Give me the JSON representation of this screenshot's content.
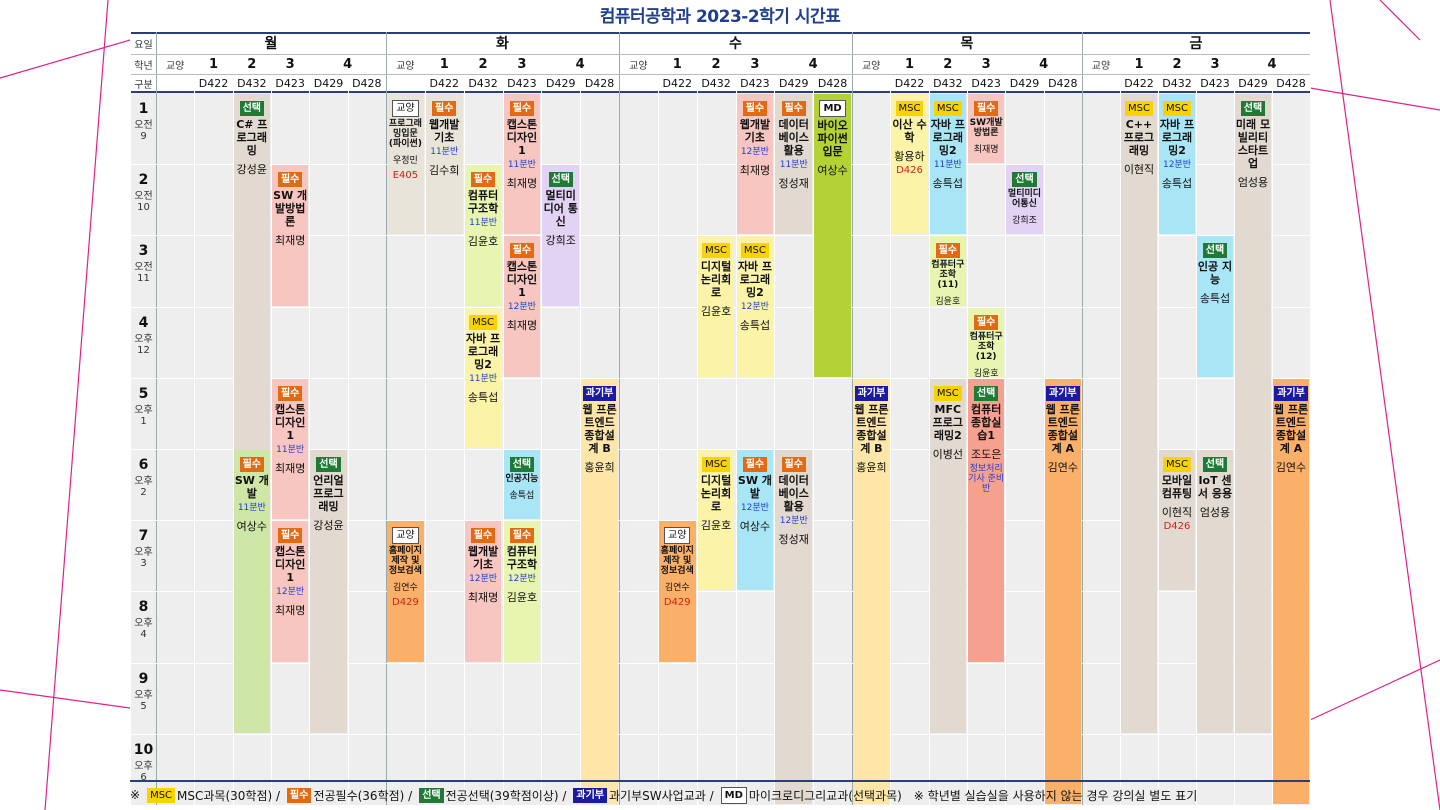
{
  "title": "컴퓨터공학과 2023-2학기 시간표",
  "labels": {
    "day": "요일",
    "level": "학년",
    "category": "구분"
  },
  "days": [
    "월",
    "화",
    "수",
    "목",
    "금"
  ],
  "levels": [
    "교양",
    "1",
    "2",
    "3",
    "4"
  ],
  "rooms": [
    "",
    "D422",
    "D432",
    "D423",
    "D429",
    "D428"
  ],
  "periods": [
    {
      "num": "1",
      "ampm": "오전",
      "time": "9"
    },
    {
      "num": "2",
      "ampm": "오전",
      "time": "10"
    },
    {
      "num": "3",
      "ampm": "오전",
      "time": "11"
    },
    {
      "num": "4",
      "ampm": "오후",
      "time": "12"
    },
    {
      "num": "5",
      "ampm": "오후",
      "time": "1"
    },
    {
      "num": "6",
      "ampm": "오후",
      "time": "2"
    },
    {
      "num": "7",
      "ampm": "오후",
      "time": "3"
    },
    {
      "num": "8",
      "ampm": "오후",
      "time": "4"
    },
    {
      "num": "9",
      "ampm": "오후",
      "time": "5"
    },
    {
      "num": "10",
      "ampm": "오후",
      "time": "6"
    }
  ],
  "badge_labels": {
    "req": "필수",
    "sel": "선택",
    "msc": "MSC",
    "gen": "교양",
    "md": "MD",
    "sw": "과기부"
  },
  "colors": {
    "req": "#f8c6c0",
    "sel": "#e2dad0",
    "msc": "#fbf3a8",
    "gen": "#e8e4da",
    "web": "#fde6a8",
    "sel_cyan": "#a9e6f5",
    "sel_lav": "#e2d2f4",
    "sel_green": "#cfe7a6",
    "md": "#b2d235",
    "req_green": "#e8f5b0",
    "red_block": "#f6a090",
    "sw": "#fbb06a",
    "grid_bg": "#eeeeee",
    "header_line": "#2a3f7a"
  },
  "courses": [
    {
      "day": 0,
      "col": 2,
      "start": 1,
      "end": 9,
      "color": "sel",
      "badge": "sel",
      "name": "C# 프로그래밍",
      "section": "",
      "prof": "강성윤",
      "room": "",
      "note": ""
    },
    {
      "day": 0,
      "col": 3,
      "start": 2,
      "end": 3,
      "color": "req",
      "badge": "req",
      "name": "SW 개발방법론",
      "section": "",
      "prof": "최재명",
      "room": "",
      "note": ""
    },
    {
      "day": 0,
      "col": 3,
      "start": 5,
      "end": 6,
      "color": "req",
      "badge": "req",
      "name": "캡스톤디자인1",
      "section": "11분반",
      "prof": "최재명",
      "room": "",
      "note": ""
    },
    {
      "day": 0,
      "col": 2,
      "start": 6,
      "end": 9,
      "color": "sel_green",
      "badge": "req",
      "name": "SW 개발",
      "section": "11분반",
      "prof": "여상수",
      "room": "",
      "note": ""
    },
    {
      "day": 0,
      "col": 4,
      "start": 6,
      "end": 9,
      "color": "sel",
      "badge": "sel",
      "name": "언리얼 프로그래밍",
      "section": "",
      "prof": "강성윤",
      "room": "",
      "note": ""
    },
    {
      "day": 0,
      "col": 3,
      "start": 7,
      "end": 8,
      "color": "req",
      "badge": "req",
      "name": "캡스톤디자인1",
      "section": "12분반",
      "prof": "최재명",
      "room": "",
      "note": ""
    },
    {
      "day": 1,
      "col": 0,
      "start": 1,
      "end": 2,
      "color": "gen",
      "badge": "gen",
      "name": "프로그래밍입문(파이썬)",
      "section": "",
      "prof": "우정민",
      "room": "E405",
      "note": "small"
    },
    {
      "day": 1,
      "col": 1,
      "start": 1,
      "end": 2,
      "color": "gen",
      "badge": "req",
      "name": "웹개발 기초",
      "section": "11분반",
      "prof": "김수희",
      "room": "",
      "note": ""
    },
    {
      "day": 1,
      "col": 3,
      "start": 1,
      "end": 2,
      "color": "req",
      "badge": "req",
      "name": "캡스톤디자인1",
      "section": "11분반",
      "prof": "최재명",
      "room": "",
      "note": ""
    },
    {
      "day": 1,
      "col": 2,
      "start": 2,
      "end": 3,
      "color": "req_green",
      "badge": "req",
      "name": "컴퓨터 구조학",
      "section": "11분반",
      "prof": "김윤호",
      "room": "",
      "note": ""
    },
    {
      "day": 1,
      "col": 4,
      "start": 2,
      "end": 3,
      "color": "sel_lav",
      "badge": "sel",
      "name": "멀티미디어 통신",
      "section": "",
      "prof": "강희조",
      "room": "",
      "note": ""
    },
    {
      "day": 1,
      "col": 3,
      "start": 3,
      "end": 4,
      "color": "req",
      "badge": "req",
      "name": "캡스톤디자인1",
      "section": "12분반",
      "prof": "최재명",
      "room": "",
      "note": ""
    },
    {
      "day": 1,
      "col": 2,
      "start": 4,
      "end": 5,
      "color": "msc",
      "badge": "msc",
      "name": "자바 프로그래밍2",
      "section": "11분반",
      "prof": "송특섭",
      "room": "",
      "note": ""
    },
    {
      "day": 1,
      "col": 5,
      "start": 5,
      "end": 10,
      "color": "web",
      "badge": "sw",
      "name": "웹 프론트엔드 종합설계 B",
      "section": "",
      "prof": "홍윤희",
      "room": "",
      "note": ""
    },
    {
      "day": 1,
      "col": 3,
      "start": 6,
      "end": 6,
      "color": "sel_cyan",
      "badge": "sel",
      "name": "인공지능",
      "section": "",
      "prof": "송특섭",
      "room": "",
      "note": "small"
    },
    {
      "day": 1,
      "col": 0,
      "start": 7,
      "end": 8,
      "color": "sw",
      "badge": "gen",
      "name": "홈페이지제작 및 정보검색",
      "section": "",
      "prof": "김연수",
      "room": "D429",
      "note": "small"
    },
    {
      "day": 1,
      "col": 2,
      "start": 7,
      "end": 8,
      "color": "req",
      "badge": "req",
      "name": "웹개발 기초",
      "section": "12분반",
      "prof": "최재명",
      "room": "",
      "note": ""
    },
    {
      "day": 1,
      "col": 3,
      "start": 7,
      "end": 8,
      "color": "req_green",
      "badge": "req",
      "name": "컴퓨터 구조학",
      "section": "12분반",
      "prof": "김윤호",
      "room": "",
      "note": ""
    },
    {
      "day": 2,
      "col": 3,
      "start": 1,
      "end": 2,
      "color": "req",
      "badge": "req",
      "name": "웹개발 기초",
      "section": "12분반",
      "prof": "최재명",
      "room": "",
      "note": ""
    },
    {
      "day": 2,
      "col": 4,
      "start": 1,
      "end": 2,
      "color": "sel",
      "badge": "req",
      "name": "데이터베이스 활용",
      "section": "11분반",
      "prof": "정성재",
      "room": "",
      "note": ""
    },
    {
      "day": 2,
      "col": 5,
      "start": 1,
      "end": 4,
      "color": "md",
      "badge": "md",
      "name": "바이오 파이썬 입문",
      "section": "",
      "prof": "여상수",
      "room": "",
      "note": ""
    },
    {
      "day": 2,
      "col": 2,
      "start": 3,
      "end": 4,
      "color": "msc",
      "badge": "msc",
      "name": "디지털 논리회로",
      "section": "",
      "prof": "김윤호",
      "room": "",
      "note": ""
    },
    {
      "day": 2,
      "col": 3,
      "start": 3,
      "end": 4,
      "color": "msc",
      "badge": "msc",
      "name": "자바 프로그래밍2",
      "section": "12분반",
      "prof": "송특섭",
      "room": "",
      "note": ""
    },
    {
      "day": 2,
      "col": 6,
      "start": 5,
      "end": 10,
      "color": "web",
      "badge": "sw",
      "name": "웹 프론트엔드 종합설계 B",
      "section": "",
      "prof": "홍윤희",
      "room": "",
      "note": ""
    },
    {
      "day": 2,
      "col": 2,
      "start": 6,
      "end": 7,
      "color": "msc",
      "badge": "msc",
      "name": "디지털 논리회로",
      "section": "",
      "prof": "김윤호",
      "room": "",
      "note": ""
    },
    {
      "day": 2,
      "col": 3,
      "start": 6,
      "end": 7,
      "color": "sel_cyan",
      "badge": "req",
      "name": "SW 개발",
      "section": "12분반",
      "prof": "여상수",
      "room": "",
      "note": ""
    },
    {
      "day": 2,
      "col": 4,
      "start": 6,
      "end": 10,
      "color": "sel",
      "badge": "req",
      "name": "데이터베이스 활용",
      "section": "12분반",
      "prof": "정성재",
      "room": "",
      "note": ""
    },
    {
      "day": 2,
      "col": 1,
      "start": 7,
      "end": 8,
      "color": "sw",
      "badge": "gen",
      "name": "홈페이지제작 및 정보검색",
      "section": "",
      "prof": "김연수",
      "room": "D429",
      "note": "small"
    },
    {
      "day": 3,
      "col": 1,
      "start": 1,
      "end": 2,
      "color": "msc",
      "badge": "msc",
      "name": "이산 수학",
      "section": "",
      "prof": "황용하",
      "room": "D426",
      "note": ""
    },
    {
      "day": 3,
      "col": 2,
      "start": 1,
      "end": 2,
      "color": "sel_cyan",
      "badge": "msc",
      "name": "자바 프로그래밍2",
      "section": "11분반",
      "prof": "송특섭",
      "room": "",
      "note": ""
    },
    {
      "day": 3,
      "col": 3,
      "start": 1,
      "end": 1,
      "color": "req",
      "badge": "req",
      "name": "SW개발방법론",
      "section": "",
      "prof": "최재명",
      "room": "",
      "note": "small"
    },
    {
      "day": 3,
      "col": 4,
      "start": 2,
      "end": 2,
      "color": "sel_lav",
      "badge": "sel",
      "name": "멀티미디어통신",
      "section": "",
      "prof": "강희조",
      "room": "",
      "note": "small"
    },
    {
      "day": 3,
      "col": 2,
      "start": 3,
      "end": 3,
      "color": "req_green",
      "badge": "req",
      "name": "컴퓨터구조학(11)",
      "section": "",
      "prof": "김윤호",
      "room": "",
      "note": "small"
    },
    {
      "day": 3,
      "col": 3,
      "start": 4,
      "end": 4,
      "color": "req_green",
      "badge": "req",
      "name": "컴퓨터구조학(12)",
      "section": "",
      "prof": "김윤호",
      "room": "",
      "note": "small"
    },
    {
      "day": 3,
      "col": 2,
      "start": 5,
      "end": 9,
      "color": "sel",
      "badge": "msc",
      "name": "MFC 프로그래밍2",
      "section": "",
      "prof": "이병선",
      "room": "",
      "note": ""
    },
    {
      "day": 3,
      "col": 3,
      "start": 5,
      "end": 8,
      "color": "red_block",
      "badge": "sel",
      "name": "컴퓨터 종합실습1",
      "section": "",
      "prof": "조도은",
      "room": "",
      "note": "정보처리기사 준비반"
    },
    {
      "day": 3,
      "col": 5,
      "start": 5,
      "end": 10,
      "color": "sw",
      "badge": "sw",
      "name": "웹 프론트엔드 종합설계 A",
      "section": "",
      "prof": "김연수",
      "room": "",
      "note": ""
    },
    {
      "day": 4,
      "col": 1,
      "start": 1,
      "end": 9,
      "color": "sel",
      "badge": "msc",
      "name": "C++ 프로그래밍",
      "section": "",
      "prof": "이현직",
      "room": "",
      "note": ""
    },
    {
      "day": 4,
      "col": 2,
      "start": 1,
      "end": 2,
      "color": "sel_cyan",
      "badge": "msc",
      "name": "자바 프로그래밍2",
      "section": "12분반",
      "prof": "송특섭",
      "room": "",
      "note": ""
    },
    {
      "day": 4,
      "col": 4,
      "start": 1,
      "end": 9,
      "color": "sel",
      "badge": "sel",
      "name": "미래 모빌리티 스타트업",
      "section": "",
      "prof": "엄성용",
      "room": "",
      "note": ""
    },
    {
      "day": 4,
      "col": 3,
      "start": 3,
      "end": 4,
      "color": "sel_cyan",
      "badge": "sel",
      "name": "인공 지능",
      "section": "",
      "prof": "송특섭",
      "room": "",
      "note": ""
    },
    {
      "day": 4,
      "col": 2,
      "start": 6,
      "end": 7,
      "color": "sel",
      "badge": "msc",
      "name": "모바일 컴퓨팅",
      "section": "",
      "prof": "이현직",
      "room": "D426",
      "note": ""
    },
    {
      "day": 4,
      "col": 3,
      "start": 6,
      "end": 9,
      "color": "sel",
      "badge": "sel",
      "name": "IoT 센서 응용",
      "section": "",
      "prof": "엄성용",
      "room": "",
      "note": ""
    },
    {
      "day": 4,
      "col": 5,
      "start": 5,
      "end": 10,
      "color": "sw",
      "badge": "sw",
      "name": "웹 프론트엔드 종합설계 A",
      "section": "",
      "prof": "김연수",
      "room": "",
      "note": ""
    }
  ],
  "footer": {
    "prefix": "※",
    "items": [
      {
        "badge": "msc",
        "text": "MSC과목(30학점) /"
      },
      {
        "badge": "req",
        "text": "전공필수(36학점) /"
      },
      {
        "badge": "sel",
        "text": "전공선택(39학점이상) /"
      },
      {
        "badge": "sw",
        "text": "과기부SW사업교과 /"
      },
      {
        "badge": "md",
        "text": "마이크로디그리교과(선택과목)"
      }
    ],
    "note": "※ 학년별 실습실을 사용하지 않는 경우 강의실 별도 표기"
  }
}
